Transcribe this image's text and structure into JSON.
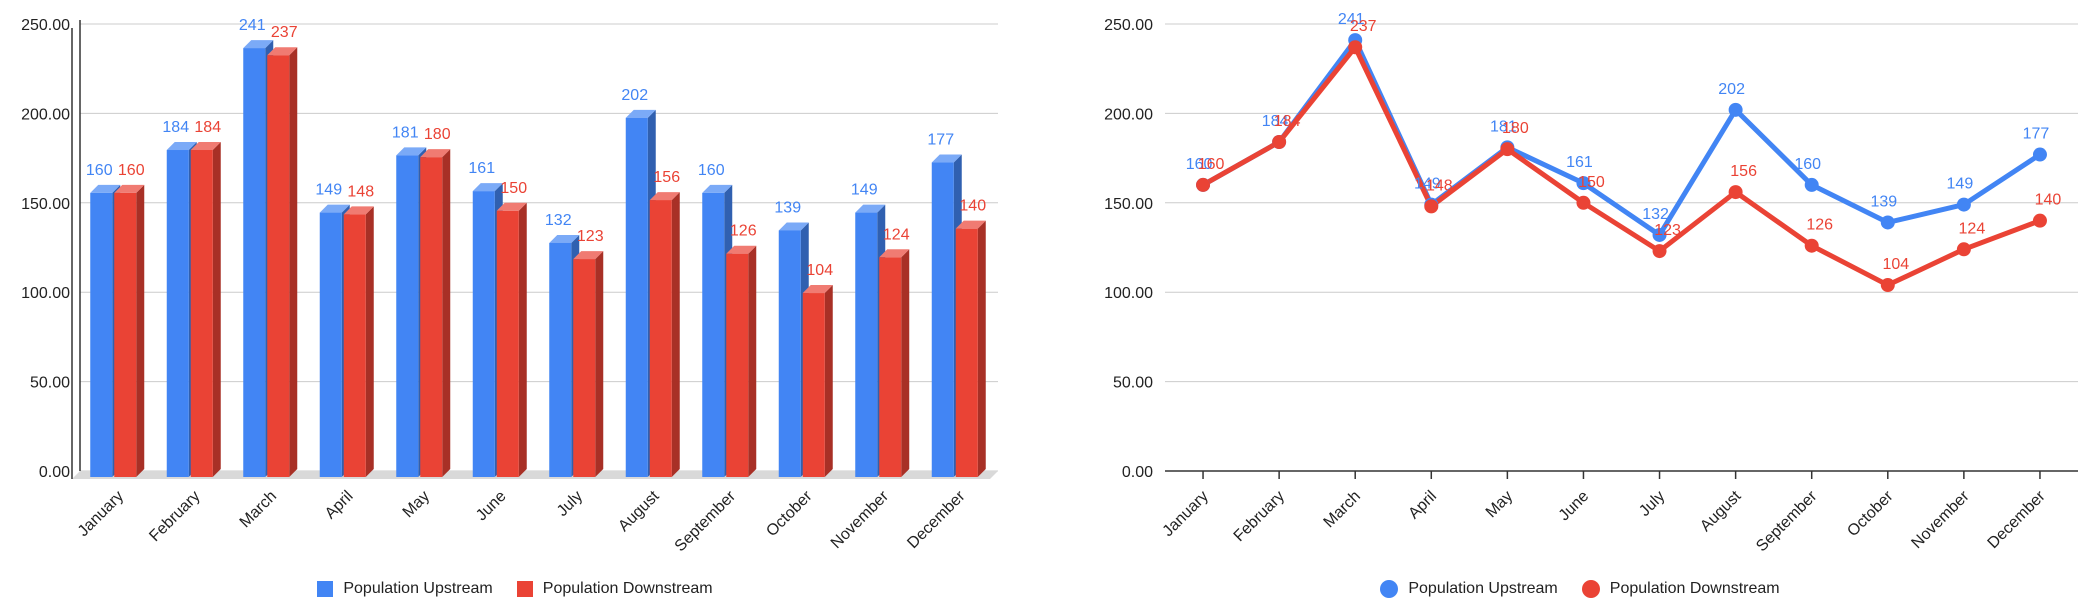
{
  "colors": {
    "upstream": "#4285f4",
    "downstream": "#ea4335"
  },
  "chart_data": [
    {
      "type": "bar",
      "categories": [
        "January",
        "February",
        "March",
        "April",
        "May",
        "June",
        "July",
        "August",
        "September",
        "October",
        "November",
        "December"
      ],
      "series": [
        {
          "name": "Population Upstream",
          "values": [
            160,
            184,
            241,
            149,
            181,
            161,
            132,
            202,
            160,
            139,
            149,
            177
          ]
        },
        {
          "name": "Population Downstream",
          "values": [
            160,
            184,
            237,
            148,
            180,
            150,
            123,
            156,
            126,
            104,
            124,
            140
          ]
        }
      ],
      "y_ticks": [
        "0.00",
        "50.00",
        "100.00",
        "150.00",
        "200.00",
        "250.00"
      ],
      "ylim": [
        0,
        250
      ],
      "grid": true,
      "legend": "bottom"
    },
    {
      "type": "line",
      "categories": [
        "January",
        "February",
        "March",
        "April",
        "May",
        "June",
        "July",
        "August",
        "September",
        "October",
        "November",
        "December"
      ],
      "series": [
        {
          "name": "Population Upstream",
          "values": [
            160,
            184,
            241,
            149,
            181,
            161,
            132,
            202,
            160,
            139,
            149,
            177
          ]
        },
        {
          "name": "Population Downstream",
          "values": [
            160,
            184,
            237,
            148,
            180,
            150,
            123,
            156,
            126,
            104,
            124,
            140
          ]
        }
      ],
      "y_ticks": [
        "0.00",
        "50.00",
        "100.00",
        "150.00",
        "200.00",
        "250.00"
      ],
      "ylim": [
        0,
        250
      ],
      "grid": true,
      "legend": "bottom"
    }
  ]
}
